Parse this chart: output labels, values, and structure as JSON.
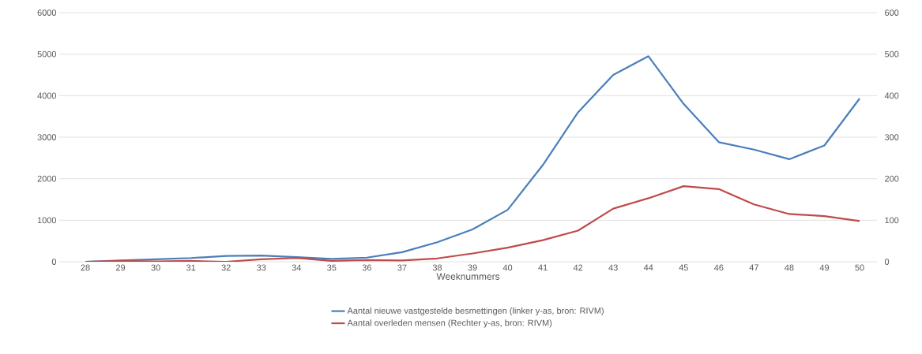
{
  "chart_data": {
    "type": "line",
    "xlabel": "Weeknummers",
    "categories": [
      "28",
      "29",
      "30",
      "31",
      "32",
      "33",
      "34",
      "35",
      "36",
      "37",
      "38",
      "39",
      "40",
      "41",
      "42",
      "43",
      "44",
      "45",
      "46",
      "47",
      "48",
      "49",
      "50"
    ],
    "series": [
      {
        "name": "Aantal nieuwe vastgestelde besmettingen (linker y-as, bron: RIVM)",
        "color": "#4a7ebb",
        "values": [
          0,
          30,
          60,
          90,
          140,
          150,
          110,
          70,
          100,
          230,
          470,
          780,
          1250,
          2330,
          3600,
          4500,
          4950,
          3800,
          2880,
          2700,
          2470,
          2800,
          3930
        ]
      },
      {
        "name": "Aantal overleden mensen (Rechter y-as, bron: RIVM)",
        "color": "#be4b48",
        "axis": "y2",
        "values": [
          0,
          2,
          1,
          2,
          0,
          6,
          9,
          2,
          4,
          3,
          8,
          20,
          34,
          52,
          75,
          128,
          153,
          182,
          175,
          138,
          115,
          110,
          98
        ]
      }
    ],
    "ylim": [
      0,
      6000
    ],
    "yticks": [
      0,
      1000,
      2000,
      3000,
      4000,
      5000,
      6000
    ],
    "y2lim": [
      0,
      600
    ],
    "y2ticks": [
      0,
      100,
      200,
      300,
      400,
      500,
      600
    ],
    "grid": "y",
    "legend": "bottom",
    "marker": "none",
    "line_style": "solid"
  }
}
